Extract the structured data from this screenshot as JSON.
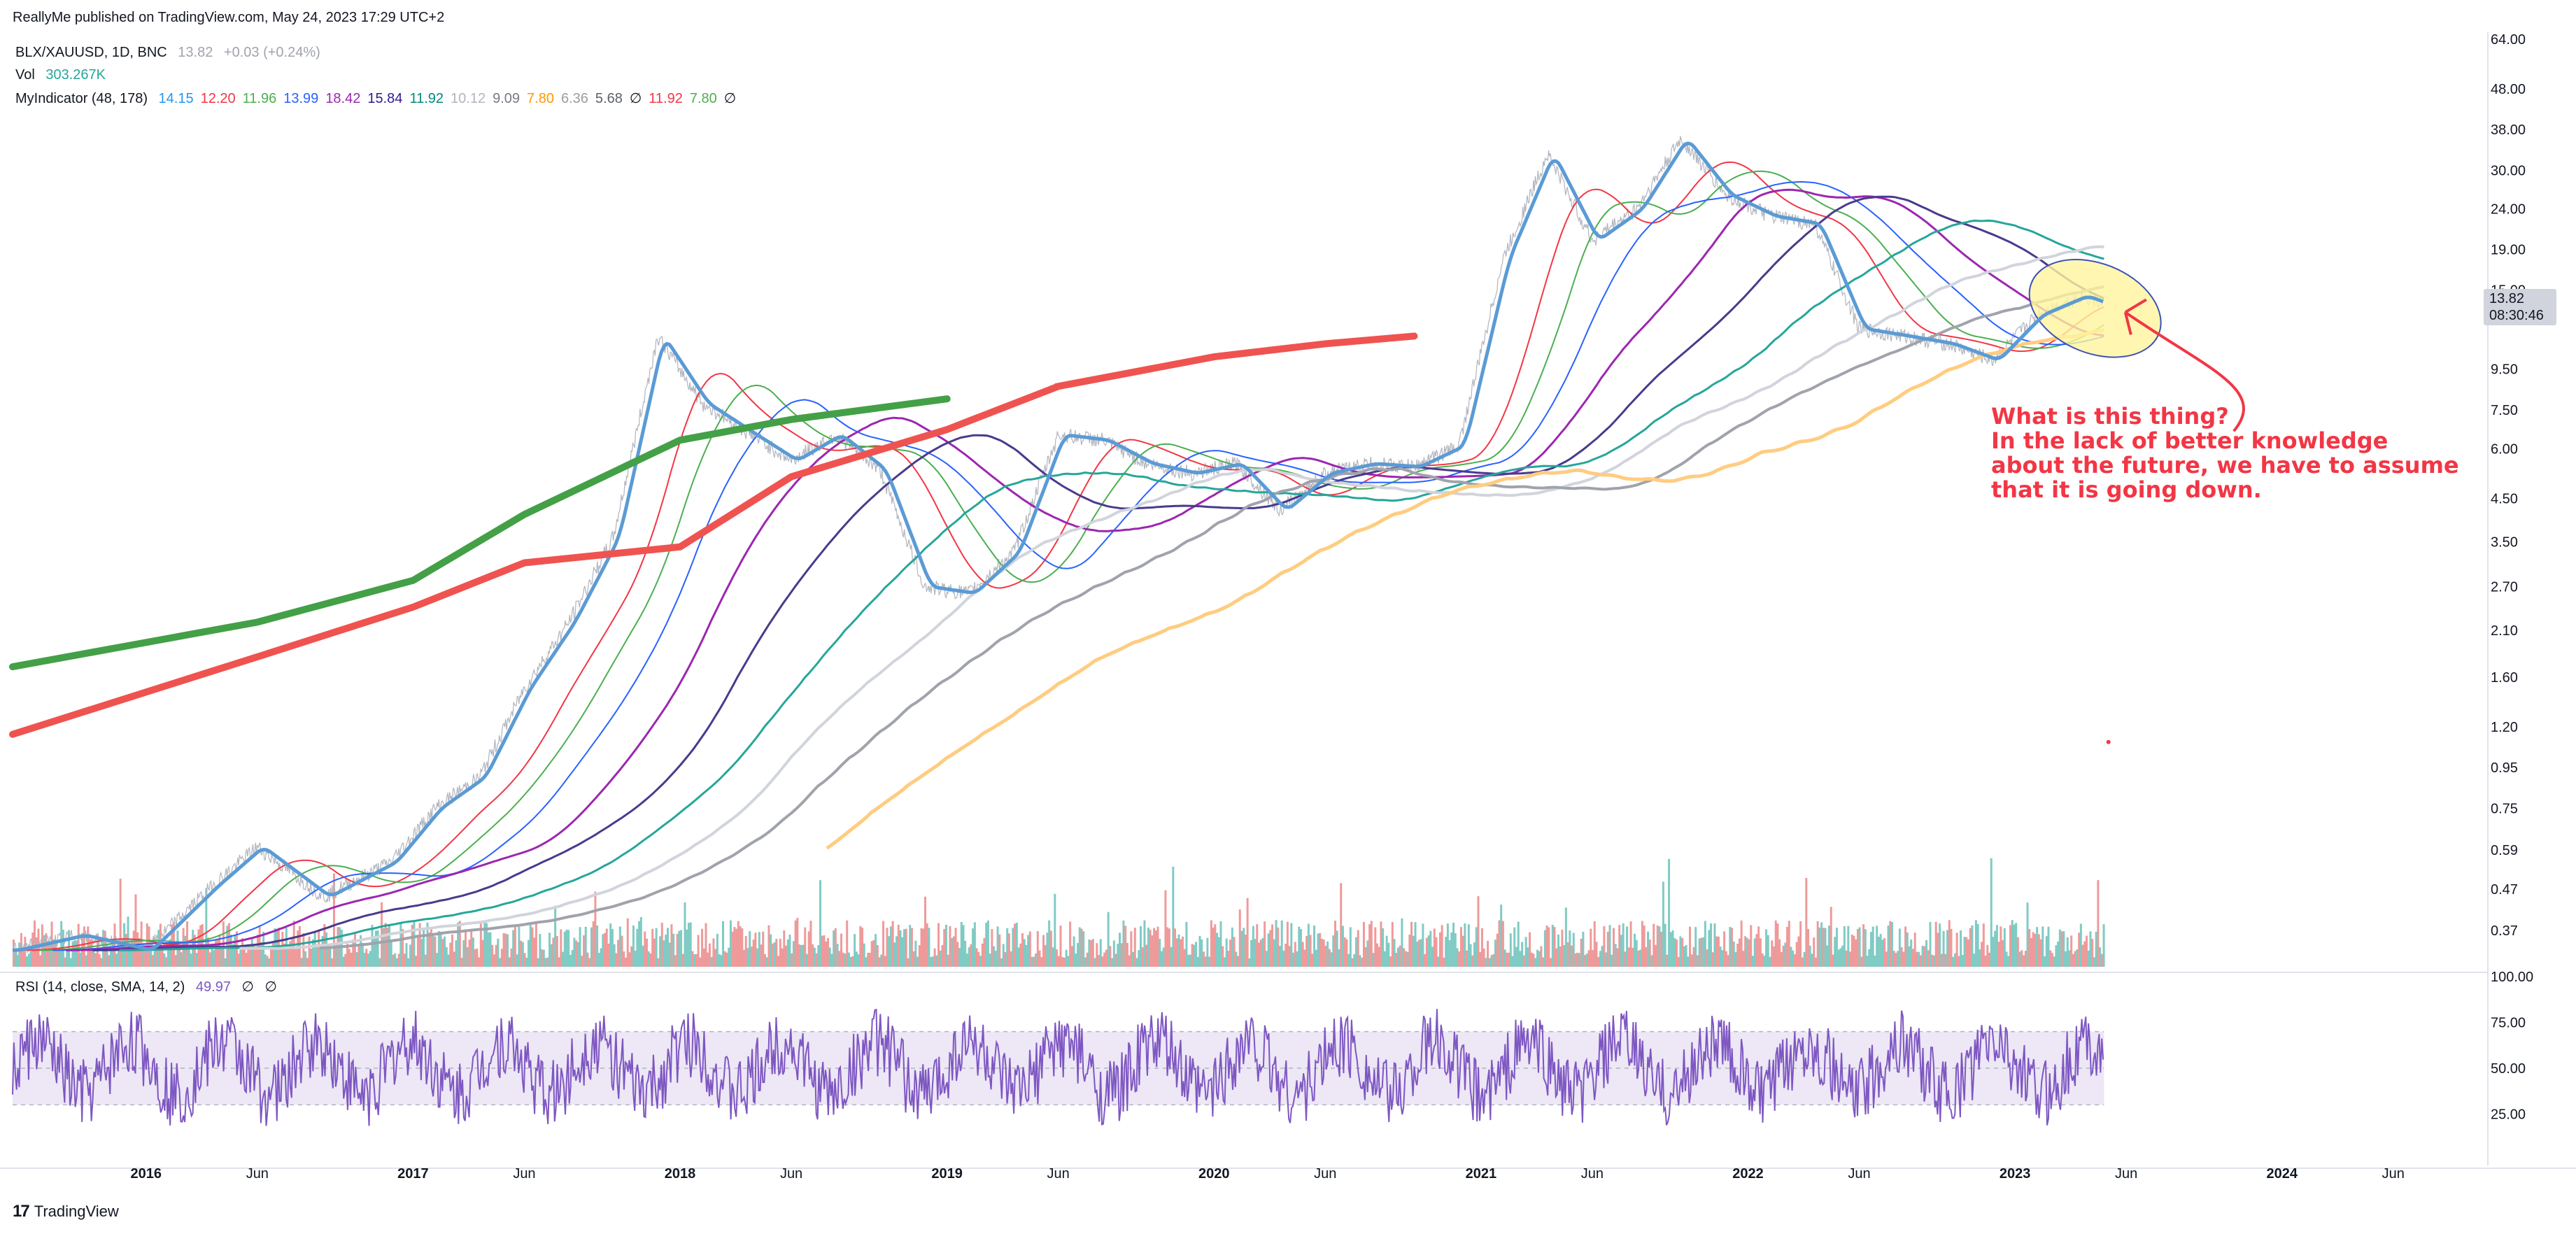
{
  "header": {
    "publisher": "ReallyMe published on TradingView.com, May 24, 2023 17:29 UTC+2",
    "symbol_line": {
      "symbol": "BLX/XAUUSD, 1D, BNC",
      "price": "13.82",
      "change": "+0.03 (+0.24%)"
    },
    "vol_line": {
      "label": "Vol",
      "value": "303.267K"
    },
    "indicator_line": {
      "label": "MyIndicator (48, 178)",
      "values": [
        {
          "text": "14.15",
          "color": "#2196f3"
        },
        {
          "text": "12.20",
          "color": "#f23645"
        },
        {
          "text": "11.96",
          "color": "#4caf50"
        },
        {
          "text": "13.99",
          "color": "#2962ff"
        },
        {
          "text": "18.42",
          "color": "#9c27b0"
        },
        {
          "text": "15.84",
          "color": "#311b92"
        },
        {
          "text": "11.92",
          "color": "#00897b"
        },
        {
          "text": "10.12",
          "color": "#b2b5be"
        },
        {
          "text": "9.09",
          "color": "#787b86"
        },
        {
          "text": "7.80",
          "color": "#ff9800"
        },
        {
          "text": "6.36",
          "color": "#9e9e9e"
        },
        {
          "text": "5.68",
          "color": "#5d606b"
        },
        {
          "text": "∅",
          "color": "#131722"
        },
        {
          "text": "11.92",
          "color": "#f23645"
        },
        {
          "text": "7.80",
          "color": "#4caf50"
        },
        {
          "text": "∅",
          "color": "#131722"
        }
      ]
    },
    "rsi_line": {
      "label": "RSI (14, close, SMA, 14, 2)",
      "value": "49.97",
      "extra": [
        "∅",
        "∅"
      ]
    }
  },
  "price_tag": {
    "price": "13.82",
    "countdown": "08:30:46"
  },
  "annotation": {
    "lines": [
      "What is this thing?",
      "In the lack of better knowledge",
      "about the future, we have to assume",
      "that it is going down."
    ]
  },
  "footer": {
    "logo_text": "TradingView",
    "logo_mark": "17"
  },
  "colors": {
    "price": "#5b9bd5",
    "ma_red": "#f23645",
    "ma_green": "#4caf50",
    "ma_blue": "#2962ff",
    "ma_purple": "#9c27b0",
    "ma_indigo": "#4a3a8c",
    "ma_teal": "#26a69a",
    "ma_gray1": "#d1d4dc",
    "ma_gray2": "#a0a3ab",
    "ma_orange": "#ffcc80",
    "thick_green": "#43a047",
    "thick_red": "#ef5350",
    "rsi_line": "#7e57c2",
    "rsi_band": "#ede7f6",
    "vol_up": "#80cbc4",
    "vol_down": "#ef9a9a",
    "ellipse_fill": "#fff59d",
    "ellipse_stroke": "#3f51b5"
  },
  "chart_data": [
    {
      "type": "line",
      "title": "BLX/XAUUSD, 1D, BNC",
      "y_scale": "log",
      "ylim": [
        0.3,
        64
      ],
      "y_ticks": [
        "64.00",
        "48.00",
        "38.00",
        "30.00",
        "24.00",
        "19.00",
        "15.00",
        "13.82",
        "9.50",
        "7.50",
        "6.00",
        "4.50",
        "3.50",
        "2.70",
        "2.10",
        "1.60",
        "1.20",
        "0.95",
        "0.75",
        "0.59",
        "0.47",
        "0.37"
      ],
      "x_ticks": [
        "2016",
        "Jun",
        "2017",
        "Jun",
        "2018",
        "Jun",
        "2019",
        "Jun",
        "2020",
        "Jun",
        "2021",
        "Jun",
        "2022",
        "Jun",
        "2023",
        "Jun",
        "2024",
        "Jun"
      ],
      "series": [
        {
          "name": "BLX/XAUUSD",
          "x": [
            "2015-07",
            "2015-10",
            "2016-01",
            "2016-04",
            "2016-06",
            "2016-09",
            "2016-12",
            "2017-02",
            "2017-04",
            "2017-06",
            "2017-08",
            "2017-10",
            "2017-12",
            "2018-02",
            "2018-04",
            "2018-06",
            "2018-08",
            "2018-10",
            "2018-12",
            "2019-02",
            "2019-04",
            "2019-06",
            "2019-08",
            "2019-10",
            "2019-12",
            "2020-02",
            "2020-04",
            "2020-06",
            "2020-08",
            "2020-10",
            "2020-12",
            "2021-02",
            "2021-04",
            "2021-06",
            "2021-08",
            "2021-10",
            "2021-12",
            "2022-02",
            "2022-04",
            "2022-06",
            "2022-08",
            "2022-10",
            "2022-12",
            "2023-02",
            "2023-04",
            "2023-05"
          ],
          "values": [
            0.33,
            0.36,
            0.33,
            0.48,
            0.6,
            0.45,
            0.55,
            0.75,
            0.9,
            1.5,
            2.2,
            3.6,
            11.5,
            7.8,
            6.6,
            5.6,
            6.5,
            5.3,
            2.7,
            2.6,
            3.3,
            6.5,
            6.3,
            5.5,
            5.2,
            5.5,
            4.2,
            5.2,
            5.5,
            5.4,
            6.1,
            18,
            33,
            20,
            24,
            36,
            26,
            23,
            22,
            12,
            11.5,
            11,
            10,
            13,
            14.5,
            13.82
          ]
        },
        {
          "name": "Thick green",
          "x": [
            "2015-07",
            "2016-06",
            "2017-01",
            "2017-06",
            "2018-01",
            "2018-06",
            "2019-01"
          ],
          "values": [
            1.7,
            2.2,
            2.8,
            4.1,
            6.3,
            7.1,
            8.0
          ]
        },
        {
          "name": "Thick red",
          "x": [
            "2015-07",
            "2016-06",
            "2017-01",
            "2017-06",
            "2018-01",
            "2018-06",
            "2019-01",
            "2019-06",
            "2020-01",
            "2020-06",
            "2020-10"
          ],
          "values": [
            1.15,
            1.8,
            2.4,
            3.1,
            3.4,
            5.1,
            6.7,
            8.6,
            10.2,
            11.0,
            11.5
          ]
        }
      ]
    },
    {
      "type": "line",
      "title": "RSI (14, close, SMA, 14, 2)",
      "ylim": [
        0,
        100
      ],
      "y_ticks": [
        "100.00",
        "75.00",
        "50.00",
        "25.00"
      ],
      "band": [
        30,
        70
      ],
      "series": [
        {
          "name": "RSI",
          "last": 49.97
        }
      ]
    }
  ]
}
